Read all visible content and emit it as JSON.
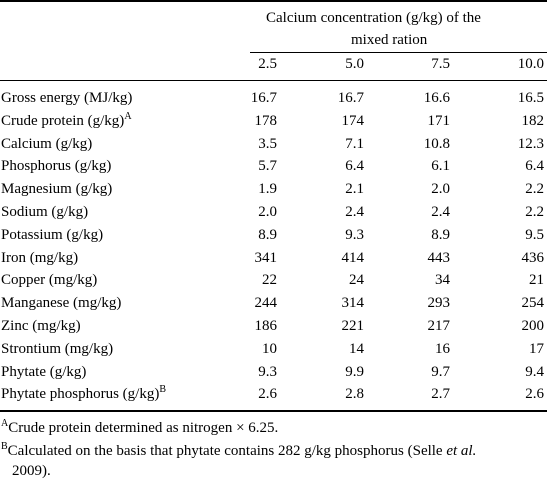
{
  "table": {
    "header": {
      "group_line1": "Calcium concentration (g/kg) of the",
      "group_line2": "mixed ration",
      "columns": [
        "2.5",
        "5.0",
        "7.5",
        "10.0"
      ]
    },
    "rows": [
      {
        "label": "Gross energy (MJ/kg)",
        "sup": "",
        "values": [
          "16.7",
          "16.7",
          "16.6",
          "16.5"
        ]
      },
      {
        "label": "Crude protein (g/kg)",
        "sup": "A",
        "values": [
          "178",
          "174",
          "171",
          "182"
        ]
      },
      {
        "label": "Calcium (g/kg)",
        "sup": "",
        "values": [
          "3.5",
          "7.1",
          "10.8",
          "12.3"
        ]
      },
      {
        "label": "Phosphorus (g/kg)",
        "sup": "",
        "values": [
          "5.7",
          "6.4",
          "6.1",
          "6.4"
        ]
      },
      {
        "label": "Magnesium (g/kg)",
        "sup": "",
        "values": [
          "1.9",
          "2.1",
          "2.0",
          "2.2"
        ]
      },
      {
        "label": "Sodium (g/kg)",
        "sup": "",
        "values": [
          "2.0",
          "2.4",
          "2.4",
          "2.2"
        ]
      },
      {
        "label": "Potassium (g/kg)",
        "sup": "",
        "values": [
          "8.9",
          "9.3",
          "8.9",
          "9.5"
        ]
      },
      {
        "label": "Iron (mg/kg)",
        "sup": "",
        "values": [
          "341",
          "414",
          "443",
          "436"
        ]
      },
      {
        "label": "Copper (mg/kg)",
        "sup": "",
        "values": [
          "22",
          "24",
          "34",
          "21"
        ]
      },
      {
        "label": "Manganese (mg/kg)",
        "sup": "",
        "values": [
          "244",
          "314",
          "293",
          "254"
        ]
      },
      {
        "label": "Zinc (mg/kg)",
        "sup": "",
        "values": [
          "186",
          "221",
          "217",
          "200"
        ]
      },
      {
        "label": "Strontium (mg/kg)",
        "sup": "",
        "values": [
          "10",
          "14",
          "16",
          "17"
        ]
      },
      {
        "label": "Phytate (g/kg)",
        "sup": "",
        "values": [
          "9.3",
          "9.9",
          "9.7",
          "9.4"
        ]
      },
      {
        "label": "Phytate phosphorus (g/kg)",
        "sup": "B",
        "values": [
          "2.6",
          "2.8",
          "2.7",
          "2.6"
        ]
      }
    ],
    "footnotes": {
      "a_marker": "A",
      "a_text": "Crude protein determined as nitrogen × 6.25.",
      "b_marker": "B",
      "b_text_1": "Calculated on the basis that phytate contains 282 g/kg phosphorus (Selle ",
      "b_text_italic": "et al.",
      "b_text_2": "2009)."
    }
  }
}
